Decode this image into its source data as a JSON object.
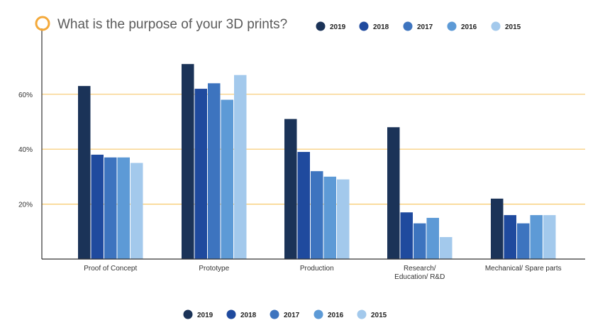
{
  "chart_data": {
    "type": "bar",
    "title": "What is the purpose of your 3D prints?",
    "categories": [
      [
        "Proof of Concept"
      ],
      [
        "Prototype"
      ],
      [
        "Production"
      ],
      [
        "Research/",
        "Education/ R&D"
      ],
      [
        "Mechanical/ Spare parts"
      ]
    ],
    "series": [
      {
        "name": "2019",
        "color": "#1b3358",
        "values": [
          63,
          71,
          51,
          48,
          22
        ]
      },
      {
        "name": "2018",
        "color": "#1f4a9e",
        "values": [
          38,
          62,
          39,
          17,
          16
        ]
      },
      {
        "name": "2017",
        "color": "#3d74bf",
        "values": [
          37,
          64,
          32,
          13,
          13
        ]
      },
      {
        "name": "2016",
        "color": "#5d9ad6",
        "values": [
          37,
          58,
          30,
          15,
          16
        ]
      },
      {
        "name": "2015",
        "color": "#a3c9ec",
        "values": [
          35,
          67,
          29,
          8,
          16
        ]
      }
    ],
    "yticks": [
      {
        "value": 20,
        "label": "20%"
      },
      {
        "value": 40,
        "label": "40%"
      },
      {
        "value": 60,
        "label": "60%"
      }
    ],
    "ylim": [
      0,
      80
    ],
    "grid": true,
    "grid_color": "#f7c96b",
    "legend": [
      "top-right",
      "bottom-center"
    ],
    "title_icon": "circle-outline-icon",
    "accent_color": "#f4a93a"
  }
}
